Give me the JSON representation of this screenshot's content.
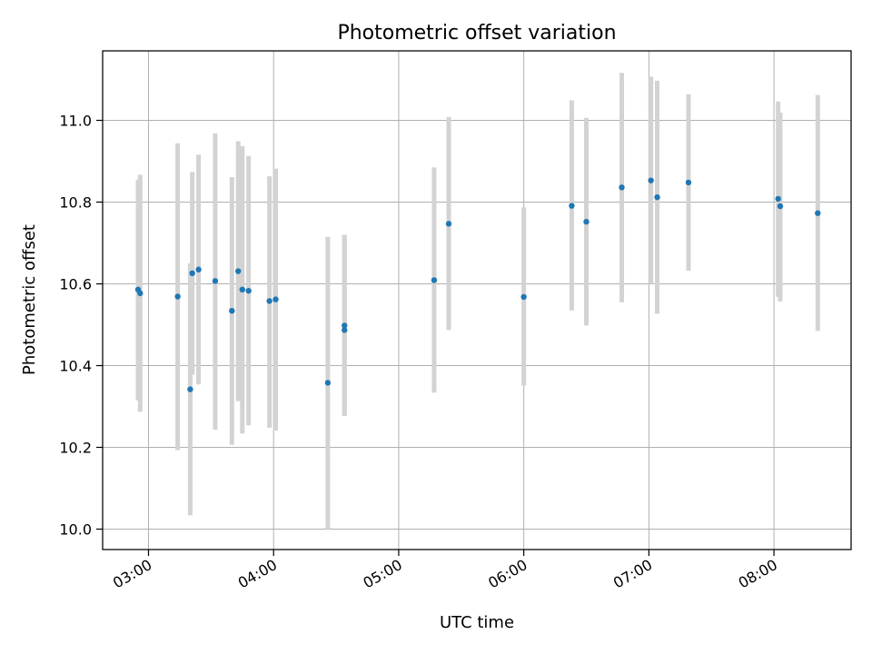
{
  "chart_data": {
    "type": "scatter",
    "title": "Photometric offset variation",
    "xlabel": "UTC time",
    "ylabel": "Photometric offset",
    "x_tick_labels": [
      "03:00",
      "04:00",
      "05:00",
      "06:00",
      "07:00",
      "08:00"
    ],
    "y_tick_labels": [
      "10.0",
      "10.2",
      "10.4",
      "10.6",
      "10.8",
      "11.0"
    ],
    "x_ticks": [
      "03:00",
      "04:00",
      "05:00",
      "06:00",
      "07:00",
      "08:00"
    ],
    "y_ticks": [
      10.0,
      10.2,
      10.4,
      10.6,
      10.8,
      11.0
    ],
    "xlim": [
      "02:38",
      "08:37"
    ],
    "ylim": [
      9.95,
      11.17
    ],
    "grid": true,
    "colors": {
      "point": "#1f77b4",
      "errorbar": "#d3d3d3",
      "grid": "#b0b0b0"
    },
    "points": [
      {
        "x": "02:55",
        "y": 10.586,
        "low": 10.315,
        "high": 10.855
      },
      {
        "x": "02:56",
        "y": 10.577,
        "low": 10.287,
        "high": 10.867
      },
      {
        "x": "03:14",
        "y": 10.569,
        "low": 10.193,
        "high": 10.944
      },
      {
        "x": "03:20",
        "y": 10.342,
        "low": 10.034,
        "high": 10.65
      },
      {
        "x": "03:21",
        "y": 10.626,
        "low": 10.378,
        "high": 10.874
      },
      {
        "x": "03:24",
        "y": 10.635,
        "low": 10.354,
        "high": 10.916
      },
      {
        "x": "03:32",
        "y": 10.607,
        "low": 10.243,
        "high": 10.968
      },
      {
        "x": "03:40",
        "y": 10.534,
        "low": 10.206,
        "high": 10.861
      },
      {
        "x": "03:43",
        "y": 10.631,
        "low": 10.313,
        "high": 10.949
      },
      {
        "x": "03:45",
        "y": 10.586,
        "low": 10.234,
        "high": 10.937
      },
      {
        "x": "03:48",
        "y": 10.583,
        "low": 10.254,
        "high": 10.913
      },
      {
        "x": "03:58",
        "y": 10.558,
        "low": 10.248,
        "high": 10.863
      },
      {
        "x": "04:01",
        "y": 10.562,
        "low": 10.241,
        "high": 10.882
      },
      {
        "x": "04:26",
        "y": 10.358,
        "low": 10.0,
        "high": 10.715
      },
      {
        "x": "04:34",
        "y": 10.487,
        "low": 10.277,
        "high": 10.72
      },
      {
        "x": "04:34",
        "y": 10.498,
        "low": 10.277,
        "high": 10.72
      },
      {
        "x": "05:17",
        "y": 10.609,
        "low": 10.334,
        "high": 10.885
      },
      {
        "x": "05:24",
        "y": 10.747,
        "low": 10.487,
        "high": 11.008
      },
      {
        "x": "06:00",
        "y": 10.568,
        "low": 10.351,
        "high": 10.787
      },
      {
        "x": "06:23",
        "y": 10.791,
        "low": 10.535,
        "high": 11.049
      },
      {
        "x": "06:30",
        "y": 10.752,
        "low": 10.498,
        "high": 11.006
      },
      {
        "x": "06:47",
        "y": 10.836,
        "low": 10.555,
        "high": 11.116
      },
      {
        "x": "07:01",
        "y": 10.853,
        "low": 10.6,
        "high": 11.107
      },
      {
        "x": "07:04",
        "y": 10.812,
        "low": 10.527,
        "high": 11.097
      },
      {
        "x": "07:19",
        "y": 10.848,
        "low": 10.632,
        "high": 11.064
      },
      {
        "x": "08:02",
        "y": 10.808,
        "low": 10.568,
        "high": 11.046
      },
      {
        "x": "08:03",
        "y": 10.79,
        "low": 10.557,
        "high": 11.019
      },
      {
        "x": "08:21",
        "y": 10.773,
        "low": 10.485,
        "high": 11.062
      }
    ]
  }
}
